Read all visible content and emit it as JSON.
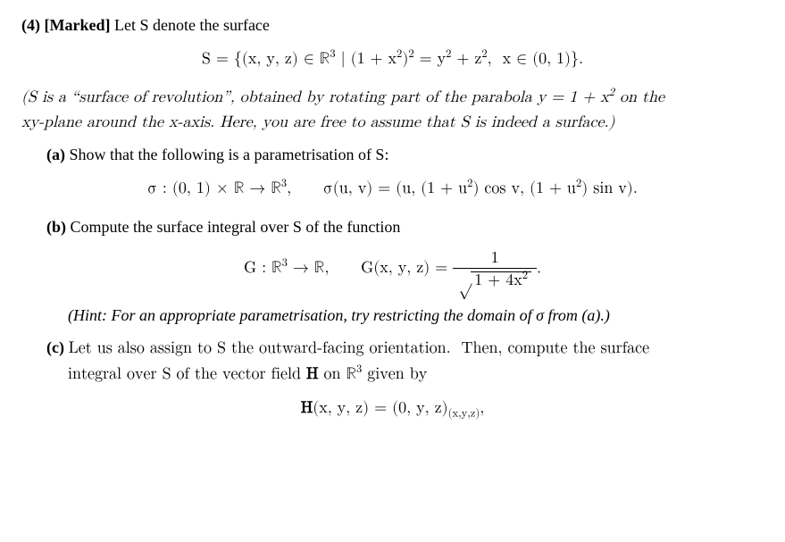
{
  "q": {
    "num": "(4)",
    "tag": "[Marked]",
    "lead": " Let S denote the surface"
  },
  "eq1_html": "S = {(x, y, z) &isin; &#8477;<sup>3</sup> | (1 + x<sup>2</sup>)<sup>2</sup> = y<sup>2</sup> + z<sup>2</sup>,&nbsp; x &isin; (0, 1)}.",
  "desc_line1_html": "(S is a &ldquo;surface of revolution&rdquo;, obtained by rotating part of the parabola y = 1 + x<sup>2</sup> on the",
  "desc_line2": "xy-plane around the x-axis.  Here, you are free to assume that S is indeed a surface.)",
  "a": {
    "label": "(a)",
    "text": " Show that the following is a parametrisation of S:"
  },
  "eq2_html": "&sigma; : (0, 1) &times; &#8477; &rarr; &#8477;<sup>3</sup>,&nbsp;&nbsp;&nbsp;&nbsp;&nbsp; &sigma;(u, v) = (u, (1 + u<sup>2</sup>) cos v, (1 + u<sup>2</sup>) sin v).",
  "b": {
    "label": "(b)",
    "text": " Compute the surface integral over S of the function"
  },
  "eq3": {
    "map_html": "G : &#8477;<sup>3</sup> &rarr; &#8477;,&nbsp;&nbsp;&nbsp;&nbsp;&nbsp; G(x, y, z) = ",
    "num": "1",
    "radicand_html": "1 + 4x<sup>2</sup>"
  },
  "hint": "(Hint: For an appropriate parametrisation, try restricting the domain of σ from (a).)",
  "c": {
    "label": "(c)",
    "line1_html": " Let us also assign to S the outward-facing orientation.&nbsp; Then, compute the surface",
    "line2_html": "integral over S of the vector field <b>H</b> on &#8477;<sup>3</sup> given by"
  },
  "eq4_html": "<b>H</b>(x, y, z) = (0, y, z)<sub>(x,y,z)</sub>,"
}
